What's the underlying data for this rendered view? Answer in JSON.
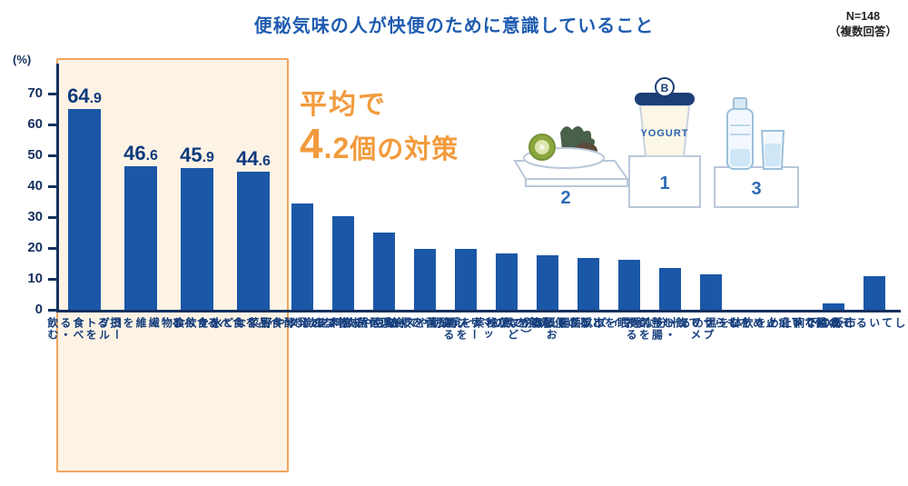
{
  "meta": {
    "sample": "N=148",
    "note": "（複数回答）"
  },
  "axis": {
    "unit": "(%)",
    "ticks": [
      70,
      60,
      50,
      40,
      30,
      20,
      10,
      0
    ]
  },
  "annotation": {
    "line1": "平均で",
    "value": "4.2",
    "suffix": "個の対策"
  },
  "illustration": {
    "brand_letter": "B",
    "yogurt_label": "YOGURT",
    "num1": "1",
    "num2": "2",
    "num3": "3"
  },
  "colors": {
    "title": "#1f5cb0",
    "bar": "#1b57a7",
    "axis": "#16305e",
    "accent_orange": "#f29b3d",
    "highlight_bg": "#fdf3e5",
    "highlight_border": "#f2a55d"
  },
  "chart_data": {
    "type": "bar",
    "title": "便秘気味の人が快便のために意識していること",
    "sample_note": "N=148（複数回答）",
    "ylabel": "(%)",
    "ylim": [
      0,
      70
    ],
    "yticks": [
      0,
      10,
      20,
      30,
      40,
      50,
      60,
      70
    ],
    "grid": false,
    "legend_position": "none",
    "bar_color": "#1b57a7",
    "highlight_count": 4,
    "annotation": "平均で4.2個の対策",
    "categories": [
      "ヨーグルトを\n食べる・飲む",
      "食物繊維を摂る",
      "水を飲む",
      "フルーツや\n野菜などを食べる",
      "納豆や味噌など\n発酵食品を食べる",
      "乳酸菌飲料を飲む",
      "運動やストレッチをする",
      "乳酸菌を摂る",
      "病院で便秘薬を\nもらって飲む",
      "腸（おなか）などの\nマッサージをする",
      "市販の便秘薬を飲む",
      "ビフィズス菌を摂る",
      "十分な睡眠をとる",
      "サプリメント・\n整腸剤を摂る",
      "体を温める",
      "病院で下痢止めを\nもらって飲む",
      "市販の下痢止めを飲む",
      "その他",
      "特に意識している\nことはない"
    ],
    "values": [
      64.9,
      46.6,
      45.9,
      44.6,
      34.5,
      30.4,
      25.0,
      19.6,
      19.6,
      18.2,
      17.6,
      16.9,
      16.2,
      13.5,
      11.5,
      0,
      0,
      2.0,
      10.8
    ]
  }
}
